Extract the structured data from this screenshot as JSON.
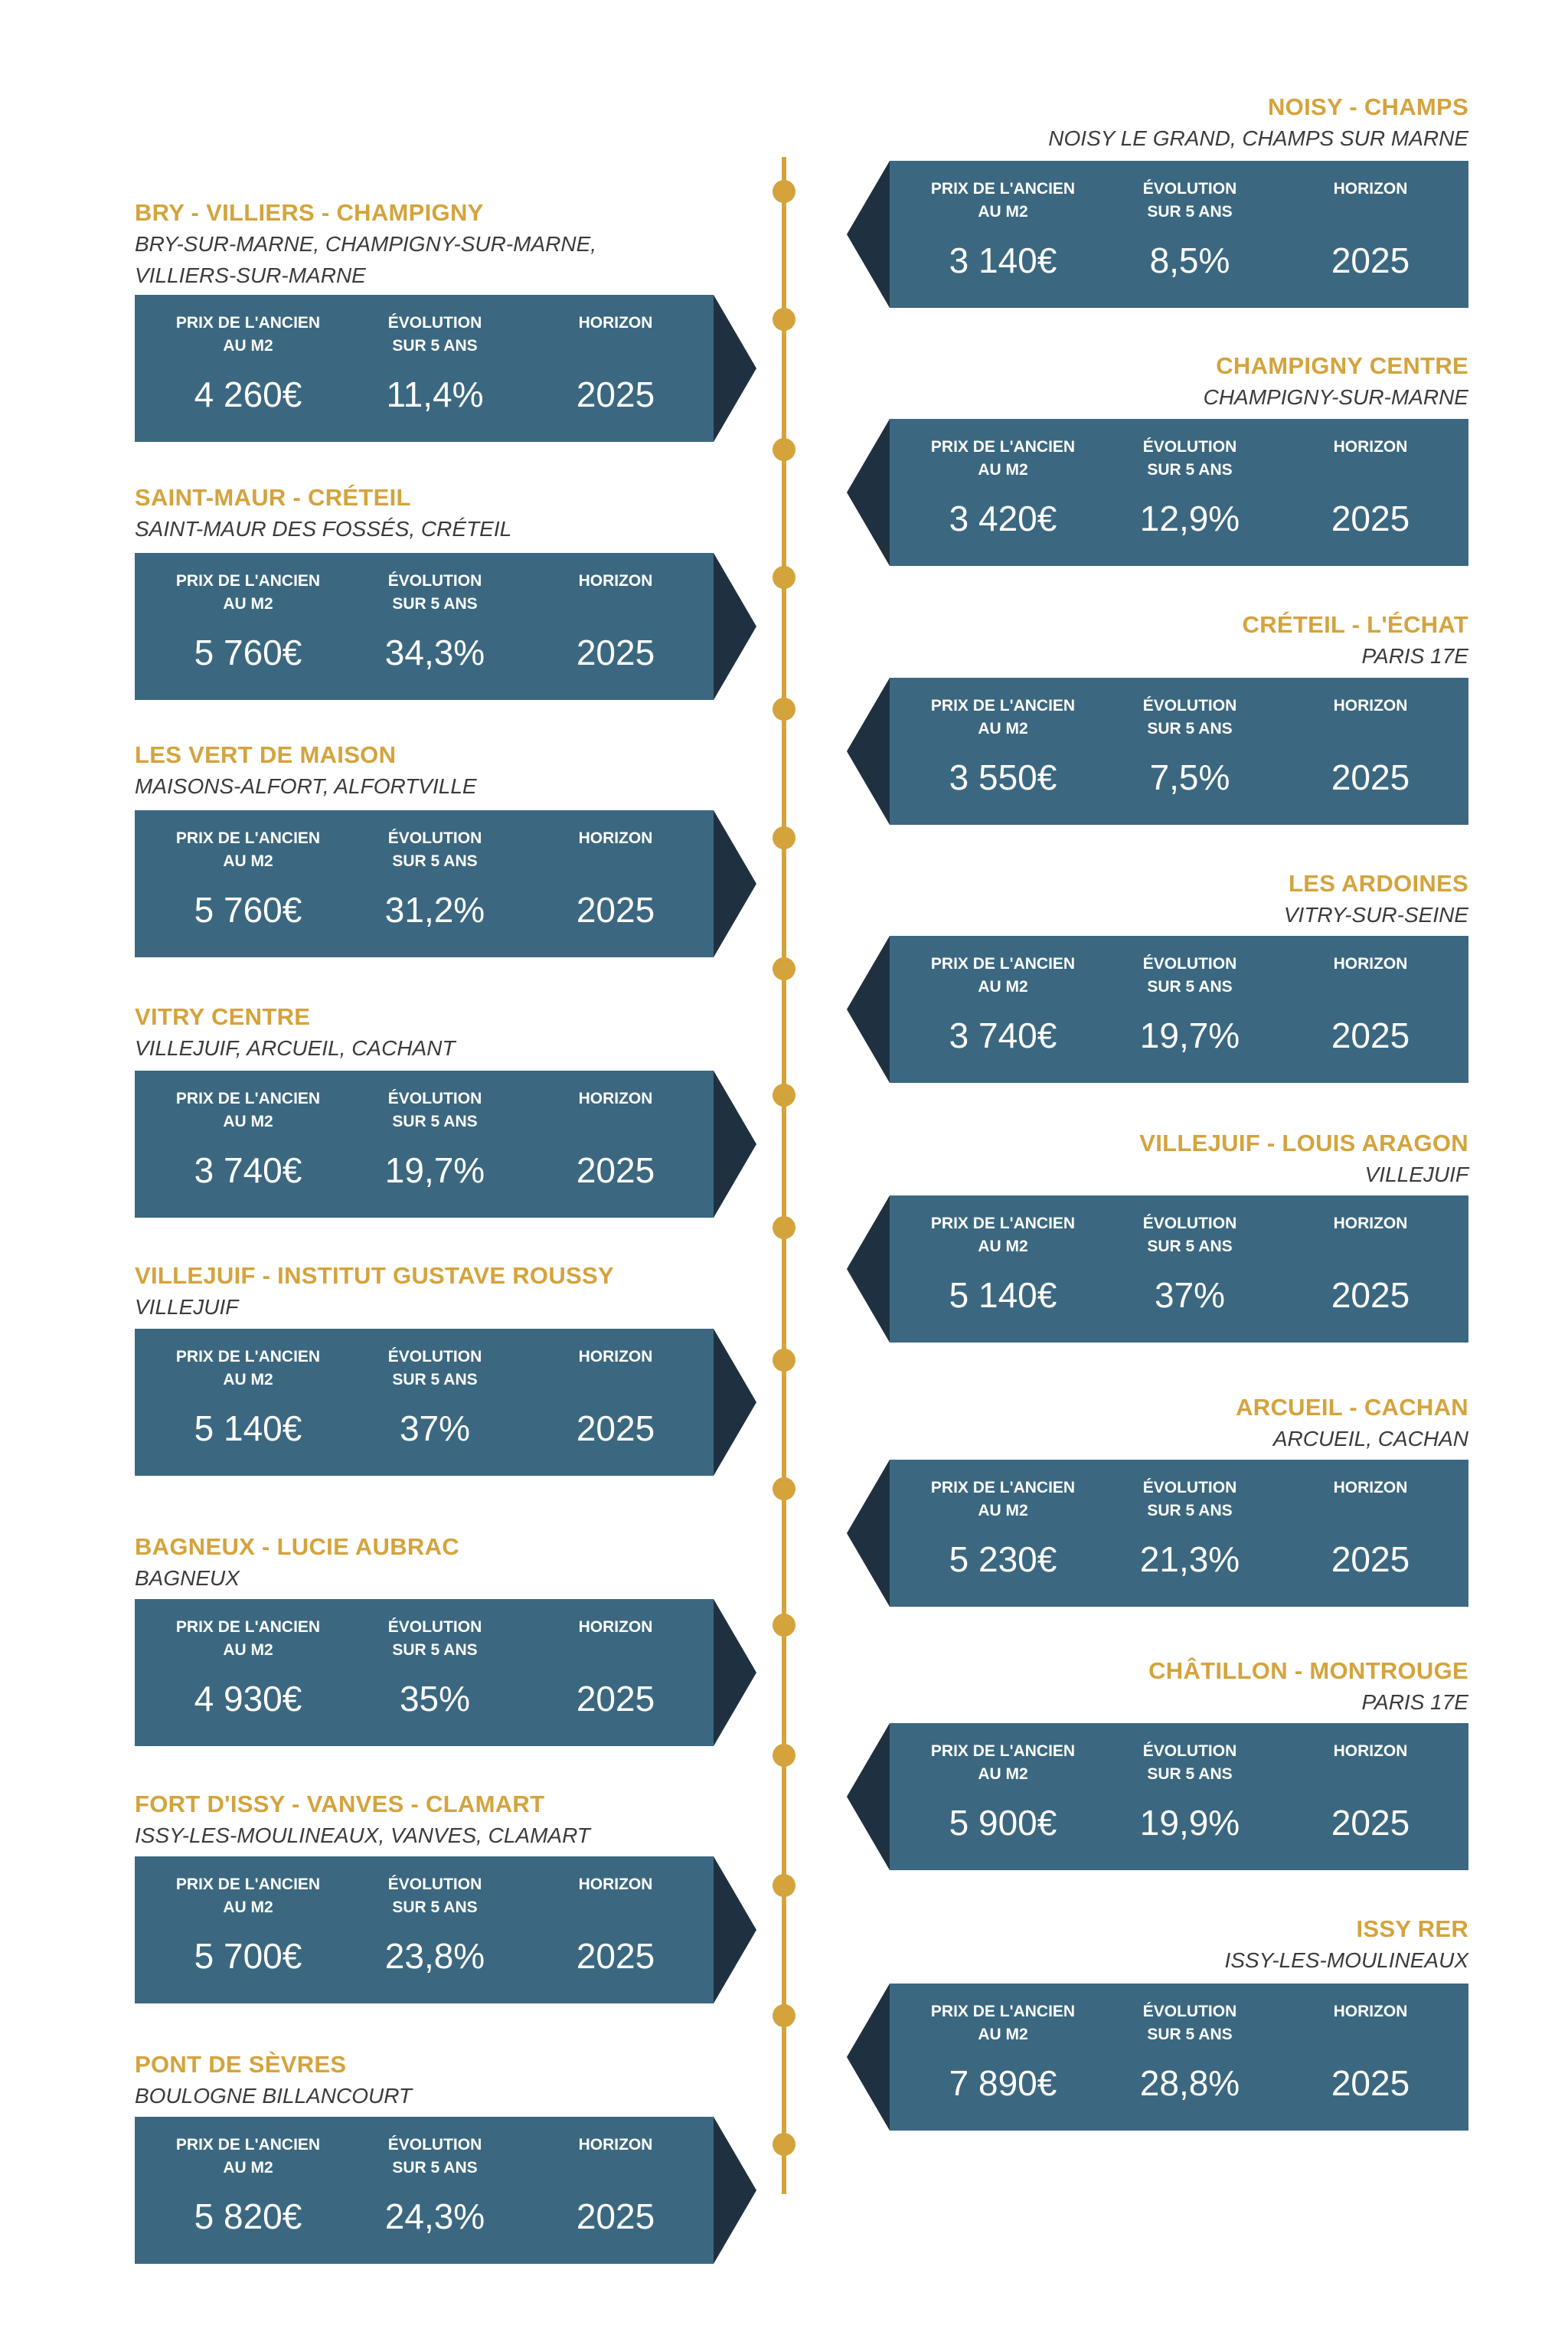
{
  "labels": {
    "price": "PRIX DE L'ANCIEN\nAU M2",
    "evolution": "ÉVOLUTION\nSUR 5 ANS",
    "horizon": "HORIZON"
  },
  "colors": {
    "accent": "#d4a33c",
    "card": "#3b6880",
    "arrow": "#1f3140",
    "text": "#3b3b3b"
  },
  "right": [
    {
      "title": "NOISY - CHAMPS",
      "subtitle": "NOISY LE GRAND, CHAMPS SUR MARNE",
      "price": "3 140€",
      "evolution": "8,5%",
      "horizon": "2025"
    },
    {
      "title": "CHAMPIGNY CENTRE",
      "subtitle": "CHAMPIGNY-SUR-MARNE",
      "price": "3 420€",
      "evolution": "12,9%",
      "horizon": "2025"
    },
    {
      "title": "CRÉTEIL - L'ÉCHAT",
      "subtitle": "PARIS 17E",
      "price": "3 550€",
      "evolution": "7,5%",
      "horizon": "2025"
    },
    {
      "title": "LES ARDOINES",
      "subtitle": "VITRY-SUR-SEINE",
      "price": "3 740€",
      "evolution": "19,7%",
      "horizon": "2025"
    },
    {
      "title": "VILLEJUIF - LOUIS ARAGON",
      "subtitle": "VILLEJUIF",
      "price": "5 140€",
      "evolution": "37%",
      "horizon": "2025"
    },
    {
      "title": "ARCUEIL - CACHAN",
      "subtitle": "ARCUEIL, CACHAN",
      "price": "5 230€",
      "evolution": "21,3%",
      "horizon": "2025"
    },
    {
      "title": "CHÂTILLON - MONTROUGE",
      "subtitle": "PARIS 17E",
      "price": "5 900€",
      "evolution": "19,9%",
      "horizon": "2025"
    },
    {
      "title": "ISSY RER",
      "subtitle": "ISSY-LES-MOULINEAUX",
      "price": "7 890€",
      "evolution": "28,8%",
      "horizon": "2025"
    }
  ],
  "left": [
    {
      "title": "BRY - VILLIERS - CHAMPIGNY",
      "subtitle": "BRY-SUR-MARNE, CHAMPIGNY-SUR-MARNE, VILLIERS-SUR-MARNE",
      "price": "4 260€",
      "evolution": "11,4%",
      "horizon": "2025"
    },
    {
      "title": "SAINT-MAUR - CRÉTEIL",
      "subtitle": "SAINT-MAUR DES FOSSÉS, CRÉTEIL",
      "price": "5 760€",
      "evolution": "34,3%",
      "horizon": "2025"
    },
    {
      "title": "LES VERT DE MAISON",
      "subtitle": "MAISONS-ALFORT, ALFORTVILLE",
      "price": "5 760€",
      "evolution": "31,2%",
      "horizon": "2025"
    },
    {
      "title": "VITRY CENTRE",
      "subtitle": "VILLEJUIF, ARCUEIL, CACHANT",
      "price": "3 740€",
      "evolution": "19,7%",
      "horizon": "2025"
    },
    {
      "title": "VILLEJUIF - INSTITUT GUSTAVE ROUSSY",
      "subtitle": "VILLEJUIF",
      "price": "5 140€",
      "evolution": "37%",
      "horizon": "2025"
    },
    {
      "title": "BAGNEUX - LUCIE AUBRAC",
      "subtitle": "BAGNEUX",
      "price": "4 930€",
      "evolution": "35%",
      "horizon": "2025"
    },
    {
      "title": "FORT D'ISSY - VANVES - CLAMART",
      "subtitle": "ISSY-LES-MOULINEAUX, VANVES, CLAMART",
      "price": "5 700€",
      "evolution": "23,8%",
      "horizon": "2025"
    },
    {
      "title": "PONT DE SÈVRES",
      "subtitle": "BOULOGNE BILLANCOURT",
      "price": "5 820€",
      "evolution": "24,3%",
      "horizon": "2025"
    }
  ]
}
